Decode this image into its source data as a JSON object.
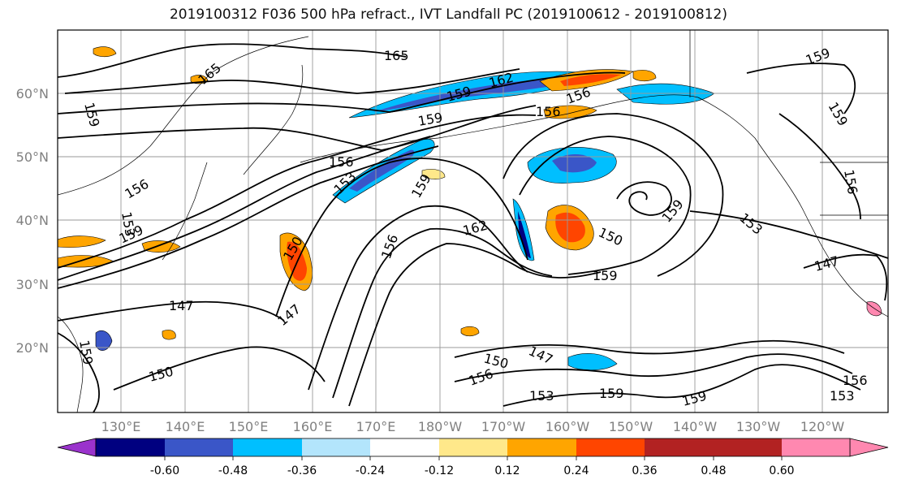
{
  "title": "2019100312 F036 500 hPa refract., IVT Landfall PC (2019100612 - 2019100812)",
  "lat_labels": [
    "60°N",
    "50°N",
    "40°N",
    "30°N",
    "20°N"
  ],
  "lon_labels": [
    "130°E",
    "140°E",
    "150°E",
    "160°E",
    "170°E",
    "180°W",
    "170°W",
    "160°W",
    "150°W",
    "140°W",
    "130°W",
    "120°W"
  ],
  "colorbar": {
    "colors": [
      "#9a33cc",
      "#000080",
      "#3a56c8",
      "#00bfff",
      "#b3e5fc",
      "#ffffff",
      "#ffe88a",
      "#ffa500",
      "#ff4500",
      "#b22222",
      "#ff88b0"
    ],
    "ticks": [
      "-0.60",
      "-0.48",
      "-0.36",
      "-0.24",
      "-0.12",
      "0.12",
      "0.24",
      "0.36",
      "0.48",
      "0.60"
    ]
  },
  "contour_labels": [
    "165",
    "165",
    "162",
    "159",
    "159",
    "159",
    "159",
    "159",
    "159",
    "159",
    "159",
    "159",
    "159",
    "156",
    "156",
    "156",
    "156",
    "156",
    "156",
    "156",
    "156",
    "153",
    "153",
    "153",
    "153",
    "153",
    "150",
    "150",
    "150",
    "150",
    "147",
    "147",
    "147",
    "147",
    "162",
    "159",
    "159"
  ]
}
